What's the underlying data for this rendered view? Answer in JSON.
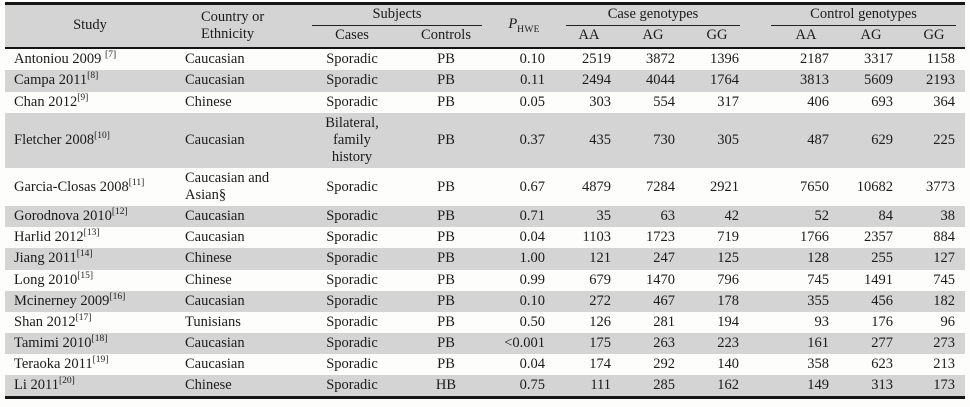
{
  "header": {
    "study": "Study",
    "country": "Country or Ethnicity",
    "subjects": "Subjects",
    "cases": "Cases",
    "controls": "Controls",
    "p_label": "P",
    "p_sub": "HWE",
    "case_genotypes": "Case genotypes",
    "control_genotypes": "Control genotypes",
    "aa": "AA",
    "ag": "AG",
    "gg": "GG"
  },
  "rows": [
    {
      "study": "Antoniou 2009 ",
      "ref": "[7]",
      "country": "Caucasian",
      "cases": "Sporadic",
      "controls": "PB",
      "p_hwe": "0.10",
      "case_aa": "2519",
      "case_ag": "3872",
      "case_gg": "1396",
      "control_aa": "2187",
      "control_ag": "3317",
      "control_gg": "1158"
    },
    {
      "study": "Campa 2011",
      "ref": "[8]",
      "country": "Caucasian",
      "cases": "Sporadic",
      "controls": "PB",
      "p_hwe": "0.11",
      "case_aa": "2494",
      "case_ag": "4044",
      "case_gg": "1764",
      "control_aa": "3813",
      "control_ag": "5609",
      "control_gg": "2193"
    },
    {
      "study": "Chan 2012",
      "ref": "[9]",
      "country": "Chinese",
      "cases": "Sporadic",
      "controls": "PB",
      "p_hwe": "0.05",
      "case_aa": "303",
      "case_ag": "554",
      "case_gg": "317",
      "control_aa": "406",
      "control_ag": "693",
      "control_gg": "364"
    },
    {
      "study": "Fletcher 2008",
      "ref": "[10]",
      "country": "Caucasian",
      "cases": "Bilateral, family history",
      "controls": "PB",
      "p_hwe": "0.37",
      "case_aa": "435",
      "case_ag": "730",
      "case_gg": "305",
      "control_aa": "487",
      "control_ag": "629",
      "control_gg": "225"
    },
    {
      "study": "Garcia-Closas 2008",
      "ref": "[11]",
      "country": "Caucasian and Asian§",
      "cases": "Sporadic",
      "controls": "PB",
      "p_hwe": "0.67",
      "case_aa": "4879",
      "case_ag": "7284",
      "case_gg": "2921",
      "control_aa": "7650",
      "control_ag": "10682",
      "control_gg": "3773"
    },
    {
      "study": "Gorodnova 2010",
      "ref": "[12]",
      "country": "Caucasian",
      "cases": "Sporadic",
      "controls": "PB",
      "p_hwe": "0.71",
      "case_aa": "35",
      "case_ag": "63",
      "case_gg": "42",
      "control_aa": "52",
      "control_ag": "84",
      "control_gg": "38"
    },
    {
      "study": "Harlid 2012",
      "ref": "[13]",
      "country": "Caucasian",
      "cases": "Sporadic",
      "controls": "PB",
      "p_hwe": "0.04",
      "case_aa": "1103",
      "case_ag": "1723",
      "case_gg": "719",
      "control_aa": "1766",
      "control_ag": "2357",
      "control_gg": "884"
    },
    {
      "study": "Jiang 2011",
      "ref": "[14]",
      "country": "Chinese",
      "cases": "Sporadic",
      "controls": "PB",
      "p_hwe": "1.00",
      "case_aa": "121",
      "case_ag": "247",
      "case_gg": "125",
      "control_aa": "128",
      "control_ag": "255",
      "control_gg": "127"
    },
    {
      "study": "Long 2010",
      "ref": "[15]",
      "country": "Chinese",
      "cases": "Sporadic",
      "controls": "PB",
      "p_hwe": "0.99",
      "case_aa": "679",
      "case_ag": "1470",
      "case_gg": "796",
      "control_aa": "745",
      "control_ag": "1491",
      "control_gg": "745"
    },
    {
      "study": "Mcinerney 2009",
      "ref": "[16]",
      "country": "Caucasian",
      "cases": "Sporadic",
      "controls": "PB",
      "p_hwe": "0.10",
      "case_aa": "272",
      "case_ag": "467",
      "case_gg": "178",
      "control_aa": "355",
      "control_ag": "456",
      "control_gg": "182"
    },
    {
      "study": "Shan 2012",
      "ref": "[17]",
      "country": "Tunisians",
      "cases": "Sporadic",
      "controls": "PB",
      "p_hwe": "0.50",
      "case_aa": "126",
      "case_ag": "281",
      "case_gg": "194",
      "control_aa": "93",
      "control_ag": "176",
      "control_gg": "96"
    },
    {
      "study": "Tamimi 2010",
      "ref": "[18]",
      "country": "Caucasian",
      "cases": "Sporadic",
      "controls": "PB",
      "p_hwe": "<0.001",
      "case_aa": "175",
      "case_ag": "263",
      "case_gg": "223",
      "control_aa": "161",
      "control_ag": "277",
      "control_gg": "273"
    },
    {
      "study": "Teraoka 2011",
      "ref": "[19]",
      "country": "Caucasian",
      "cases": "Sporadic",
      "controls": "PB",
      "p_hwe": "0.04",
      "case_aa": "174",
      "case_ag": "292",
      "case_gg": "140",
      "control_aa": "358",
      "control_ag": "623",
      "control_gg": "213"
    },
    {
      "study": "Li 2011",
      "ref": "[20]",
      "country": "Chinese",
      "cases": "Sporadic",
      "controls": "HB",
      "p_hwe": "0.75",
      "case_aa": "111",
      "case_ag": "285",
      "case_gg": "162",
      "control_aa": "149",
      "control_ag": "313",
      "control_gg": "173"
    }
  ],
  "colors": {
    "header_bg": "#d4d4d4",
    "row_alt_bg": "#d4d4d4",
    "border": "#161616",
    "text": "#1b1b1b",
    "page_bg": "#fdfdfc"
  }
}
